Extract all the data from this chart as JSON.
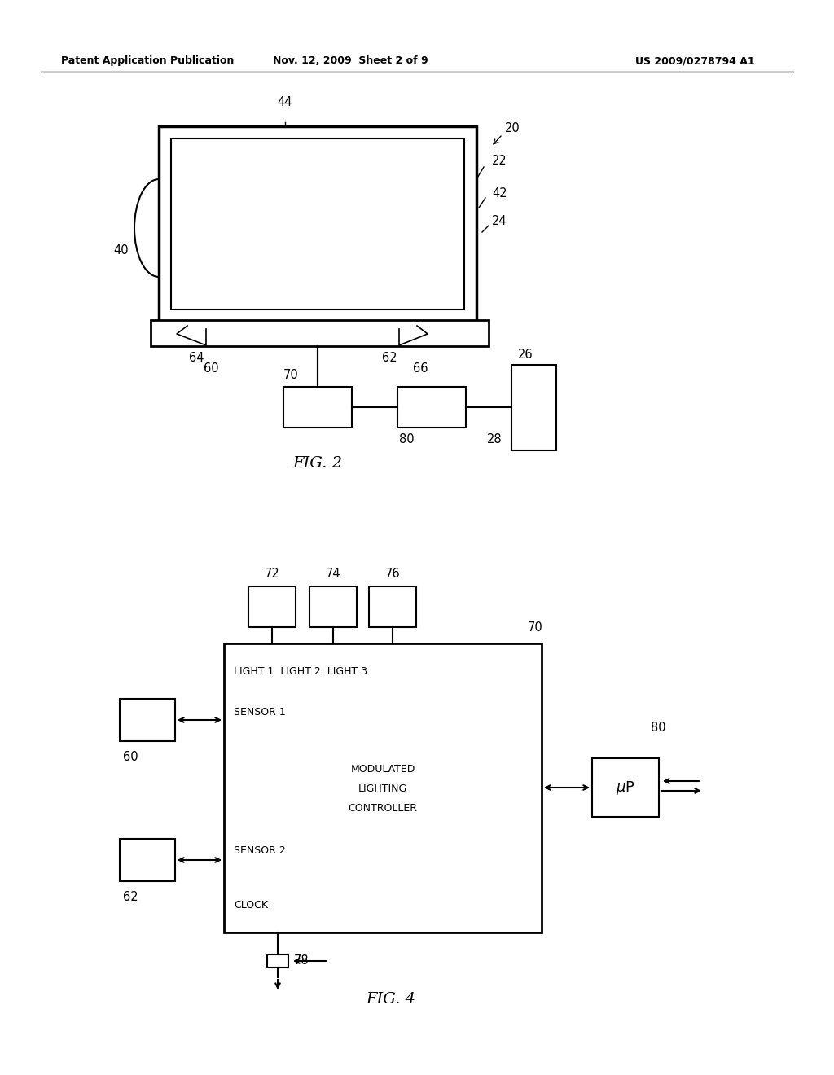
{
  "header_left": "Patent Application Publication",
  "header_mid": "Nov. 12, 2009  Sheet 2 of 9",
  "header_right": "US 2009/0278794 A1",
  "fig2_label": "FIG. 2",
  "fig4_label": "FIG. 4",
  "bg_color": "#ffffff",
  "line_color": "#000000"
}
